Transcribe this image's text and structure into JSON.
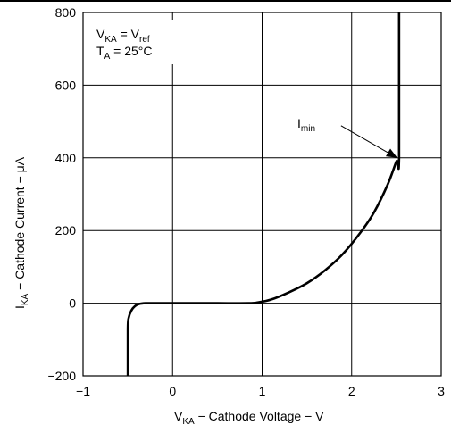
{
  "chart_data": {
    "type": "line",
    "x_range": [
      -1,
      3
    ],
    "y_range": [
      -200,
      800
    ],
    "x_ticks": [
      -1,
      0,
      1,
      2,
      3
    ],
    "y_ticks": [
      -200,
      0,
      200,
      400,
      600,
      800
    ],
    "x_tick_labels": [
      "−1",
      "0",
      "1",
      "2",
      "3"
    ],
    "y_tick_labels": [
      "−200",
      "0",
      "200",
      "400",
      "600",
      "800"
    ],
    "grid": true,
    "xlabel": {
      "main": "V",
      "sub": "KA",
      "rest": " − Cathode Voltage − V"
    },
    "ylabel": {
      "main": "I",
      "sub": "KA",
      "rest": " − Cathode Current − μA"
    },
    "conditions": {
      "line1": {
        "main": "V",
        "sub": "KA",
        "eq": " = V",
        "sub2": "ref"
      },
      "line2": {
        "main": "T",
        "sub": "A",
        "eq": " = 25°C"
      }
    },
    "annotation": {
      "main": "I",
      "sub": "min",
      "x": 2.5,
      "y": 400
    },
    "series": [
      {
        "x": [
          -0.5,
          -0.5,
          -0.49,
          -0.46,
          -0.42,
          -0.37,
          -0.3,
          -0.22,
          0.0,
          0.5,
          0.85,
          0.95,
          1.1,
          1.3,
          1.5,
          1.7,
          1.9,
          2.1,
          2.25,
          2.4,
          2.5,
          2.53,
          2.53
        ],
        "y": [
          -200,
          -70,
          -40,
          -20,
          -8,
          -2,
          0,
          0,
          0,
          0,
          0,
          2,
          10,
          30,
          55,
          90,
          135,
          195,
          250,
          325,
          390,
          400,
          800
        ]
      }
    ]
  }
}
